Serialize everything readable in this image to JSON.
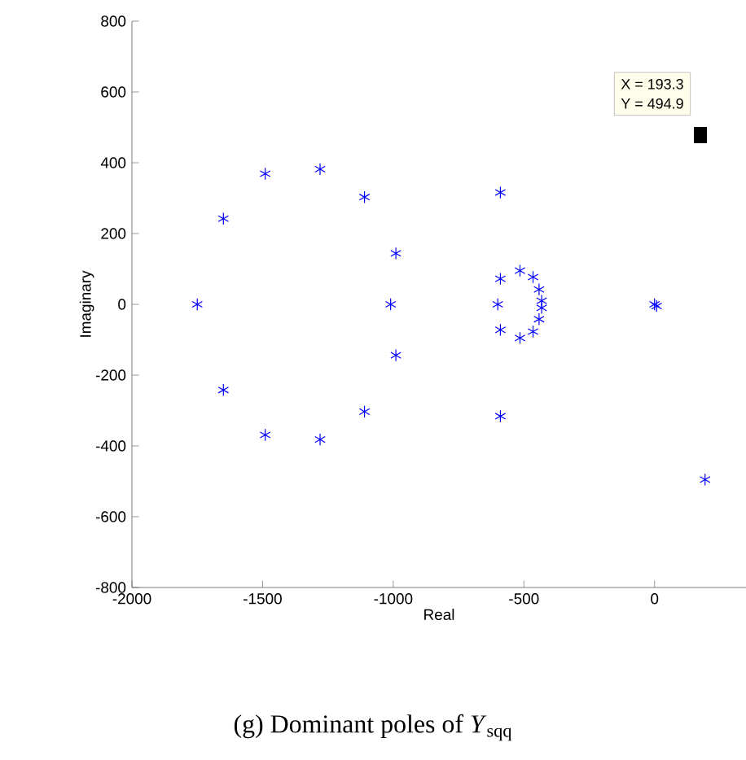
{
  "chart_data": {
    "type": "scatter",
    "title": "(g) Dominant poles of *Y*$_{sqq}$",
    "xlabel": "Real",
    "ylabel": "Imaginary",
    "x": [
      -1750,
      -1650,
      -1650,
      -1490,
      -1490,
      -1280,
      -1280,
      -1110,
      -1110,
      -990,
      -990,
      -1010,
      -590,
      -590,
      -600,
      -590,
      -590,
      -515,
      -515,
      -465,
      -465,
      -442,
      -442,
      -432,
      -432,
      0,
      8,
      193.3
    ],
    "values": [
      0,
      242,
      -242,
      369,
      -369,
      382,
      -382,
      303,
      -303,
      144,
      -144,
      0,
      316,
      -316,
      0,
      72,
      -72,
      95,
      -95,
      77,
      -77,
      42,
      -42,
      10,
      -10,
      0,
      -5,
      -495
    ],
    "color": "#0000ff",
    "marker": "cross",
    "xlim": [
      -2000,
      350
    ],
    "ylim": [
      -800,
      800
    ],
    "xticks": [
      -2000,
      -1500,
      -1000,
      -500,
      0
    ],
    "yticks": [
      -800,
      -600,
      -400,
      -200,
      0,
      200,
      400,
      600,
      800
    ],
    "annotations": [
      "X = 193.3",
      "Y = 494.9"
    ]
  }
}
